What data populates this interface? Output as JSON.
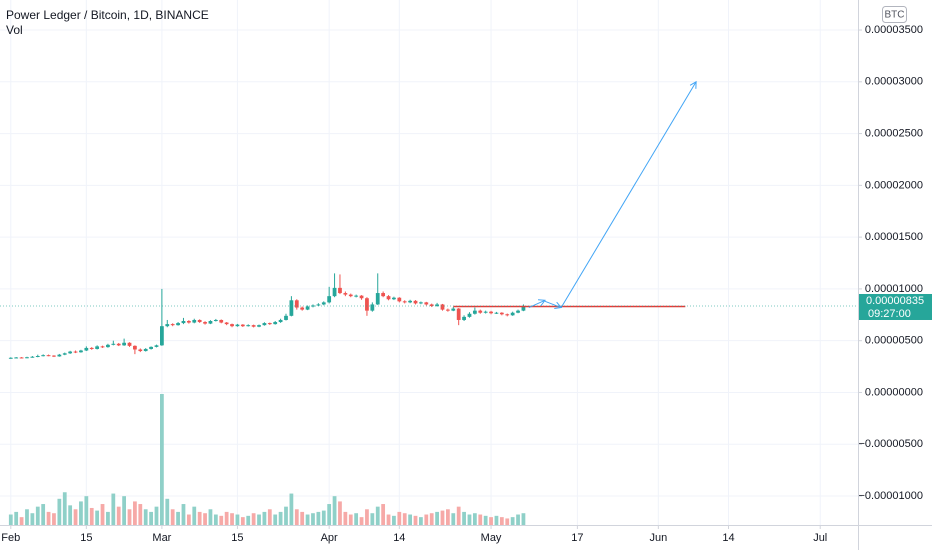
{
  "chart_data": {
    "type": "candlestick",
    "title": "Power Ledger / Bitcoin, 1D, BINANCE",
    "volume_label": "Vol",
    "currency": "BTC",
    "price_label": "0.00000835",
    "countdown": "09:27:00",
    "up_color": "#26a69a",
    "down_color": "#ef5350",
    "volume_up_color": "#8fd0c8",
    "volume_down_color": "#f6a9a7",
    "grid": true,
    "xlim": [
      "01-30",
      "07-08"
    ],
    "ylim": [
      -1.28e-05,
      3.79e-05
    ],
    "xticks": [
      {
        "value": "02-01",
        "label": "Feb"
      },
      {
        "value": "02-15",
        "label": "15"
      },
      {
        "value": "03-01",
        "label": "Mar"
      },
      {
        "value": "03-15",
        "label": "15"
      },
      {
        "value": "04-01",
        "label": "Apr"
      },
      {
        "value": "04-14",
        "label": "14"
      },
      {
        "value": "05-01",
        "label": "May"
      },
      {
        "value": "05-17",
        "label": "17"
      },
      {
        "value": "06-01",
        "label": "Jun"
      },
      {
        "value": "06-14",
        "label": "14"
      },
      {
        "value": "07-01",
        "label": "Jul"
      }
    ],
    "yticks": [
      {
        "value": 3.5e-05,
        "label": "0.00003500"
      },
      {
        "value": 3e-05,
        "label": "0.00003000"
      },
      {
        "value": 2.5e-05,
        "label": "0.00002500"
      },
      {
        "value": 2e-05,
        "label": "0.00002000"
      },
      {
        "value": 1.5e-05,
        "label": "0.00001500"
      },
      {
        "value": 1e-05,
        "label": "0.00001000"
      },
      {
        "value": 5e-06,
        "label": "0.00000500"
      },
      {
        "value": 0,
        "label": "0.00000000"
      },
      {
        "value": -5e-06,
        "label": "−0.00000500"
      },
      {
        "value": -1e-05,
        "label": "−0.00001000"
      }
    ],
    "x": [
      "02-01",
      "02-02",
      "02-03",
      "02-04",
      "02-05",
      "02-06",
      "02-07",
      "02-08",
      "02-09",
      "02-10",
      "02-11",
      "02-12",
      "02-13",
      "02-14",
      "02-15",
      "02-16",
      "02-17",
      "02-18",
      "02-19",
      "02-20",
      "02-21",
      "02-22",
      "02-23",
      "02-24",
      "02-25",
      "02-26",
      "02-27",
      "02-28",
      "03-01",
      "03-02",
      "03-03",
      "03-04",
      "03-05",
      "03-06",
      "03-07",
      "03-08",
      "03-09",
      "03-10",
      "03-11",
      "03-12",
      "03-13",
      "03-14",
      "03-15",
      "03-16",
      "03-17",
      "03-18",
      "03-19",
      "03-20",
      "03-21",
      "03-22",
      "03-23",
      "03-24",
      "03-25",
      "03-26",
      "03-27",
      "03-28",
      "03-29",
      "03-30",
      "03-31",
      "04-01",
      "04-02",
      "04-03",
      "04-04",
      "04-05",
      "04-06",
      "04-07",
      "04-08",
      "04-09",
      "04-10",
      "04-11",
      "04-12",
      "04-13",
      "04-14",
      "04-15",
      "04-16",
      "04-17",
      "04-18",
      "04-19",
      "04-20",
      "04-21",
      "04-22",
      "04-23",
      "04-24",
      "04-25",
      "04-26",
      "04-27",
      "04-28",
      "04-29",
      "04-30",
      "05-01",
      "05-02",
      "05-03",
      "05-04",
      "05-05",
      "05-06",
      "05-07"
    ],
    "open": [
      3.3e-06,
      3.35e-06,
      3.38e-06,
      3.34e-06,
      3.4e-06,
      3.45e-06,
      3.52e-06,
      3.6e-06,
      3.56e-06,
      3.48e-06,
      3.65e-06,
      3.78e-06,
      3.95e-06,
      3.88e-06,
      4.05e-06,
      4.3e-06,
      4.2e-06,
      4.45e-06,
      4.38e-06,
      4.6e-06,
      4.7e-06,
      4.55e-06,
      4.8e-06,
      4.5e-06,
      4.15e-06,
      4e-06,
      4.2e-06,
      4.4e-06,
      4.55e-06,
      6.4e-06,
      6.6e-06,
      6.5e-06,
      6.7e-06,
      6.9e-06,
      6.75e-06,
      7e-06,
      6.8e-06,
      6.65e-06,
      6.9e-06,
      7e-06,
      6.75e-06,
      6.6e-06,
      6.4e-06,
      6.55e-06,
      6.4e-06,
      6.5e-06,
      6.35e-06,
      6.5e-06,
      6.7e-06,
      6.6e-06,
      6.8e-06,
      7e-06,
      7.4e-06,
      8.9e-06,
      8.2e-06,
      8e-06,
      8.3e-06,
      8.4e-06,
      8.5e-06,
      8.7e-06,
      9.3e-06,
      1.01e-05,
      9.6e-06,
      9.45e-06,
      9.3e-06,
      9.35e-06,
      9.1e-06,
      7.9e-06,
      8.5e-06,
      9.6e-06,
      9.3e-06,
      9e-06,
      9.15e-06,
      8.8e-06,
      8.7e-06,
      8.85e-06,
      8.6e-06,
      8.7e-06,
      8.5e-06,
      8.35e-06,
      8.5e-06,
      8e-06,
      7.9e-06,
      8.1e-06,
      7e-06,
      7.3e-06,
      7.6e-06,
      7.9e-06,
      7.7e-06,
      7.8e-06,
      7.65e-06,
      7.7e-06,
      7.55e-06,
      7.45e-06,
      7.7e-06,
      7.9e-06
    ],
    "high": [
      3.4e-06,
      3.42e-06,
      3.42e-06,
      3.45e-06,
      3.52e-06,
      3.65e-06,
      3.68e-06,
      3.66e-06,
      3.6e-06,
      3.72e-06,
      3.85e-06,
      4.02e-06,
      4.05e-06,
      4.12e-06,
      4.45e-06,
      4.38e-06,
      4.55e-06,
      4.52e-06,
      4.7e-06,
      5e-06,
      4.78e-06,
      5.2e-06,
      4.85e-06,
      4.55e-06,
      4.25e-06,
      4.28e-06,
      4.45e-06,
      4.62e-06,
      1e-05,
      7e-06,
      6.68e-06,
      6.8e-06,
      7.2e-06,
      6.98e-06,
      7.12e-06,
      7.06e-06,
      6.88e-06,
      6.98e-06,
      7.1e-06,
      7.05e-06,
      6.8e-06,
      6.65e-06,
      6.62e-06,
      6.6e-06,
      6.58e-06,
      6.55e-06,
      6.56e-06,
      6.78e-06,
      6.75e-06,
      6.9e-06,
      7.12e-06,
      7.6e-06,
      9.3e-06,
      9e-06,
      8.3e-06,
      8.4e-06,
      8.5e-06,
      8.62e-06,
      8.8e-06,
      1.02e-05,
      1.15e-05,
      1.14e-05,
      9.75e-06,
      9.55e-06,
      9.45e-06,
      9.4e-06,
      9.2e-06,
      8.7e-06,
      1.15e-05,
      9.75e-06,
      9.4e-06,
      9.25e-06,
      9.2e-06,
      8.9e-06,
      8.95e-06,
      8.92e-06,
      8.78e-06,
      8.75e-06,
      8.58e-06,
      8.65e-06,
      8.55e-06,
      8.1e-06,
      8.25e-06,
      8.15e-06,
      7.45e-06,
      7.75e-06,
      8.2e-06,
      8e-06,
      7.9e-06,
      7.88e-06,
      7.78e-06,
      7.75e-06,
      7.62e-06,
      7.8e-06,
      8e-06,
      8.5e-06
    ],
    "low": [
      3.25e-06,
      3.3e-06,
      3.29e-06,
      3.3e-06,
      3.36e-06,
      3.4e-06,
      3.48e-06,
      3.5e-06,
      3.42e-06,
      3.45e-06,
      3.6e-06,
      3.72e-06,
      3.8e-06,
      3.84e-06,
      4e-06,
      4.12e-06,
      4.15e-06,
      4.3e-06,
      4.32e-06,
      4.55e-06,
      4.48e-06,
      4.5e-06,
      4.4e-06,
      3.7e-06,
      3.9e-06,
      3.95e-06,
      4.14e-06,
      4.35e-06,
      4.5e-06,
      6.3e-06,
      6.4e-06,
      6.45e-06,
      6.6e-06,
      6.65e-06,
      6.68e-06,
      6.72e-06,
      6.55e-06,
      6.6e-06,
      6.85e-06,
      6.68e-06,
      6.5e-06,
      6.3e-06,
      6.35e-06,
      6.32e-06,
      6.36e-06,
      6.28e-06,
      6.3e-06,
      6.45e-06,
      6.52e-06,
      6.55e-06,
      6.72e-06,
      6.95e-06,
      7.35e-06,
      8e-06,
      7.9e-06,
      7.95e-06,
      8.22e-06,
      8.35e-06,
      8.42e-06,
      8.6e-06,
      9.2e-06,
      9.5e-06,
      9.3e-06,
      9.2e-06,
      9.18e-06,
      8.95e-06,
      7.4e-06,
      7.8e-06,
      8.45e-06,
      9.2e-06,
      8.9e-06,
      8.92e-06,
      8.7e-06,
      8.6e-06,
      8.62e-06,
      8.5e-06,
      8.52e-06,
      8.4e-06,
      8.25e-06,
      8.28e-06,
      7.9e-06,
      7.8e-06,
      7.85e-06,
      6.5e-06,
      6.9e-06,
      7.22e-06,
      7.52e-06,
      7.6e-06,
      7.62e-06,
      7.55e-06,
      7.58e-06,
      7.45e-06,
      7.35e-06,
      7.4e-06,
      7.65e-06,
      7.85e-06
    ],
    "close": [
      3.35e-06,
      3.38e-06,
      3.34e-06,
      3.4e-06,
      3.45e-06,
      3.52e-06,
      3.6e-06,
      3.56e-06,
      3.48e-06,
      3.65e-06,
      3.78e-06,
      3.95e-06,
      3.88e-06,
      4.05e-06,
      4.3e-06,
      4.2e-06,
      4.45e-06,
      4.38e-06,
      4.6e-06,
      4.7e-06,
      4.55e-06,
      4.8e-06,
      4.5e-06,
      4.15e-06,
      4e-06,
      4.2e-06,
      4.4e-06,
      4.55e-06,
      6.4e-06,
      6.6e-06,
      6.5e-06,
      6.7e-06,
      6.9e-06,
      6.75e-06,
      7e-06,
      6.8e-06,
      6.65e-06,
      6.9e-06,
      7e-06,
      6.75e-06,
      6.6e-06,
      6.4e-06,
      6.55e-06,
      6.4e-06,
      6.5e-06,
      6.35e-06,
      6.5e-06,
      6.7e-06,
      6.6e-06,
      6.8e-06,
      7e-06,
      7.4e-06,
      8.9e-06,
      8.2e-06,
      8e-06,
      8.3e-06,
      8.4e-06,
      8.5e-06,
      8.7e-06,
      9.3e-06,
      1.01e-05,
      9.6e-06,
      9.45e-06,
      9.3e-06,
      9.35e-06,
      9.1e-06,
      7.9e-06,
      8.5e-06,
      9.6e-06,
      9.3e-06,
      9e-06,
      9.15e-06,
      8.8e-06,
      8.7e-06,
      8.85e-06,
      8.6e-06,
      8.7e-06,
      8.5e-06,
      8.35e-06,
      8.5e-06,
      8e-06,
      7.9e-06,
      8.1e-06,
      7e-06,
      7.3e-06,
      7.6e-06,
      7.9e-06,
      7.7e-06,
      7.8e-06,
      7.65e-06,
      7.7e-06,
      7.55e-06,
      7.45e-06,
      7.7e-06,
      7.9e-06,
      8.35e-06
    ],
    "volume": [
      8,
      10,
      6,
      12,
      9,
      14,
      16,
      10,
      9,
      20,
      25,
      15,
      12,
      18,
      22,
      13,
      11,
      16,
      10,
      24,
      14,
      22,
      12,
      18,
      16,
      12,
      10,
      14,
      100,
      20,
      12,
      10,
      16,
      8,
      14,
      10,
      9,
      12,
      8,
      7,
      10,
      9,
      8,
      6,
      7,
      9,
      8,
      10,
      12,
      8,
      10,
      14,
      24,
      12,
      10,
      8,
      9,
      10,
      11,
      16,
      22,
      18,
      10,
      8,
      9,
      6,
      12,
      9,
      14,
      16,
      8,
      7,
      10,
      9,
      8,
      7,
      6,
      8,
      9,
      10,
      11,
      12,
      9,
      14,
      10,
      8,
      9,
      8,
      7,
      6,
      7,
      6,
      5,
      6,
      8,
      9
    ],
    "horizontal_line": {
      "value": 8.3e-06,
      "from": "04-24",
      "to": "06-06",
      "color": "#e53935"
    },
    "arrows": [
      {
        "color": "#42a5f5",
        "points": [
          [
            "05-08",
            8.2e-06
          ],
          [
            "05-11",
            8.9e-06
          ]
        ]
      },
      {
        "color": "#42a5f5",
        "points": [
          [
            "05-11",
            8.8e-06
          ],
          [
            "05-14",
            8.2e-06
          ]
        ]
      },
      {
        "color": "#42a5f5",
        "points": [
          [
            "05-14",
            8.2e-06
          ],
          [
            "06-08",
            3e-05
          ]
        ]
      }
    ]
  }
}
